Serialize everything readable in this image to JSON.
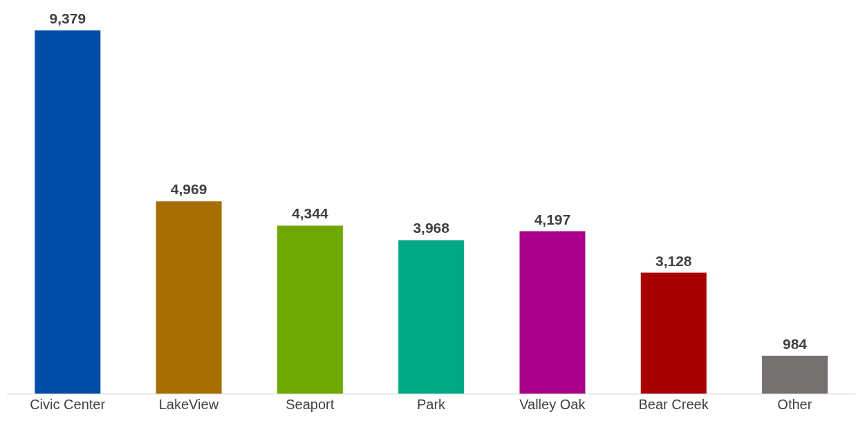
{
  "chart_data": {
    "type": "bar",
    "categories": [
      "Civic Center",
      "LakeView",
      "Seaport",
      "Park",
      "Valley Oak",
      "Bear Creek",
      "Other"
    ],
    "values": [
      9379,
      4969,
      4344,
      3968,
      4197,
      3128,
      984
    ],
    "colors": [
      "#004ea8",
      "#a66f00",
      "#6fa800",
      "#00a884",
      "#a8008a",
      "#a80000",
      "#767171"
    ],
    "value_labels": [
      "9,379",
      "4,969",
      "4,344",
      "3,968",
      "4,197",
      "3,128",
      "984"
    ],
    "grid": false,
    "legend": false
  }
}
